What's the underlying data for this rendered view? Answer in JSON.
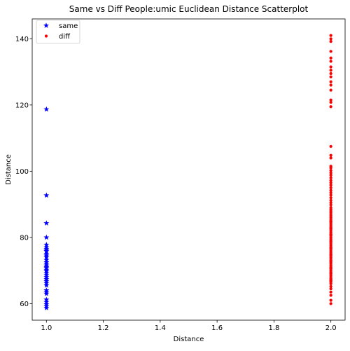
{
  "chart_data": {
    "type": "scatter",
    "title": "Same vs Diff People:umic Euclidean Distance Scatterplot",
    "xlabel": "Distance",
    "ylabel": "Distance",
    "xlim": [
      0.95,
      2.05
    ],
    "ylim": [
      55,
      146
    ],
    "x_ticks": [
      1.0,
      1.2,
      1.4,
      1.6,
      1.8,
      2.0
    ],
    "x_tick_labels": [
      "1.0",
      "1.2",
      "1.4",
      "1.6",
      "1.8",
      "2.0"
    ],
    "y_ticks": [
      60,
      80,
      100,
      120,
      140
    ],
    "y_tick_labels": [
      "60",
      "80",
      "100",
      "120",
      "140"
    ],
    "grid": false,
    "legend_position": "top-left",
    "series": [
      {
        "name": "same",
        "marker": "star",
        "color": "#0000ff",
        "x": [
          1,
          1,
          1,
          1,
          1,
          1,
          1,
          1,
          1,
          1,
          1,
          1,
          1,
          1,
          1,
          1,
          1,
          1,
          1,
          1,
          1,
          1,
          1,
          1,
          1,
          1,
          1,
          1,
          1,
          1,
          1,
          1,
          1,
          1,
          1
        ],
        "y": [
          118.7,
          92.7,
          84.3,
          80.0,
          77.8,
          77.0,
          76.5,
          75.8,
          75.0,
          74.5,
          74.0,
          73.2,
          72.5,
          72.0,
          71.5,
          70.8,
          70.2,
          69.8,
          69.2,
          68.6,
          68.0,
          67.4,
          66.8,
          66.2,
          64.0,
          63.5,
          63.0,
          61.2,
          60.5,
          59.8,
          59.2,
          58.7,
          76.0,
          71.0,
          65.5
        ]
      },
      {
        "name": "diff",
        "marker": "dot",
        "color": "#ff0000",
        "x": [
          2,
          2,
          2,
          2,
          2,
          2,
          2,
          2,
          2,
          2,
          2,
          2,
          2,
          2,
          2,
          2,
          2,
          2,
          2,
          2,
          2,
          2,
          2,
          2,
          2,
          2,
          2,
          2,
          2,
          2,
          2,
          2,
          2,
          2,
          2,
          2,
          2,
          2,
          2,
          2,
          2,
          2,
          2,
          2,
          2,
          2,
          2,
          2,
          2,
          2,
          2,
          2,
          2,
          2,
          2,
          2,
          2,
          2,
          2,
          2,
          2,
          2,
          2,
          2,
          2,
          2,
          2,
          2,
          2,
          2,
          2,
          2,
          2,
          2,
          2,
          2,
          2,
          2,
          2,
          2,
          2,
          2,
          2,
          2,
          2,
          2,
          2,
          2,
          2,
          2,
          2,
          2,
          2,
          2,
          2,
          2,
          2,
          2,
          2,
          2
        ],
        "y": [
          141.0,
          140.0,
          139.2,
          136.2,
          134.2,
          133.2,
          131.5,
          130.5,
          129.5,
          128.5,
          127.0,
          126.0,
          124.5,
          121.5,
          120.8,
          119.5,
          107.5,
          104.8,
          104.0,
          101.5,
          101.0,
          100.2,
          99.5,
          98.8,
          98.0,
          97.2,
          96.5,
          95.8,
          95.0,
          94.2,
          93.5,
          92.8,
          92.0,
          91.2,
          90.5,
          89.8,
          89.0,
          88.5,
          88.0,
          87.5,
          87.0,
          86.5,
          86.0,
          85.5,
          85.0,
          84.5,
          84.0,
          83.5,
          83.0,
          82.5,
          82.0,
          81.5,
          81.0,
          80.5,
          80.0,
          79.5,
          79.0,
          78.5,
          78.0,
          77.5,
          77.0,
          76.5,
          76.0,
          75.5,
          75.0,
          74.5,
          74.0,
          73.5,
          73.0,
          72.5,
          72.0,
          71.5,
          71.0,
          70.5,
          70.0,
          69.5,
          69.0,
          68.5,
          68.0,
          67.5,
          67.0,
          66.5,
          66.0,
          64.5,
          63.5,
          62.5,
          61.0,
          60.0,
          65.2,
          66.8,
          67.2,
          69.2,
          70.8,
          72.8,
          74.8,
          76.8,
          78.8,
          80.8,
          82.8,
          84.8
        ]
      }
    ]
  }
}
